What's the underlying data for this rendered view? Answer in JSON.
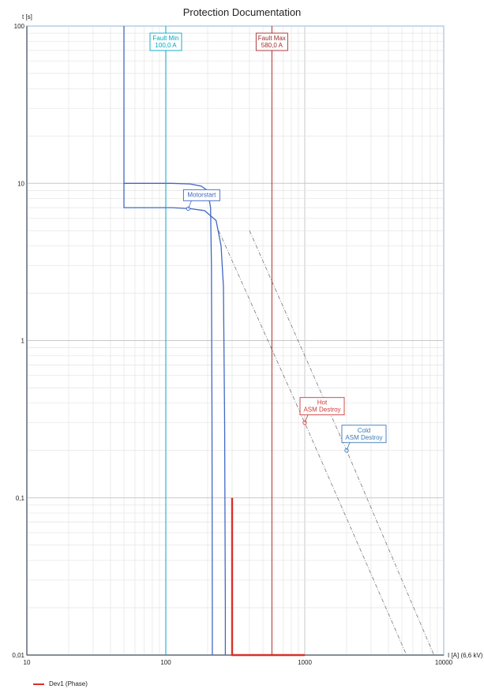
{
  "chart_data": {
    "type": "line",
    "title": "Protection Documentation",
    "xlabel": "I [A] (6,6 kV)",
    "ylabel": "t [s]",
    "x_scale": "log",
    "y_scale": "log",
    "xlim": [
      10,
      10000
    ],
    "ylim": [
      0.01,
      100
    ],
    "grid": true,
    "x_ticks": [
      10,
      100,
      1000,
      10000
    ],
    "x_tick_labels": [
      "10",
      "100",
      "1000",
      "10000"
    ],
    "y_ticks": [
      0.01,
      0.1,
      1,
      10,
      100
    ],
    "y_tick_labels": [
      "0,01",
      "0,1",
      "1",
      "10",
      "100"
    ],
    "legend_position": "bottom-left",
    "colors": {
      "fault_min": "#00a7c4",
      "fault_max": "#a42a2a",
      "motor": "#4168c5",
      "device": "#d9302b",
      "hot": "#cc3a3a",
      "cold": "#3a78b5",
      "destroy_line": "#777777",
      "frame": "#c9d9ea"
    },
    "series": [
      {
        "name": "Dev1 (Phase)",
        "color": "#d9302b",
        "points": [
          [
            300,
            0.1
          ],
          [
            300,
            0.01
          ],
          [
            1000,
            0.01
          ]
        ]
      }
    ],
    "curves": [
      {
        "key": "motor_cold",
        "color": "#4168c5",
        "points": [
          [
            50,
            100
          ],
          [
            50,
            10
          ],
          [
            110,
            10
          ],
          [
            150,
            9.9
          ],
          [
            180,
            9.6
          ],
          [
            200,
            9.0
          ],
          [
            210,
            7.0
          ],
          [
            213,
            3.0
          ],
          [
            215,
            0.3
          ],
          [
            216,
            0.02
          ],
          [
            216,
            0.01
          ]
        ]
      },
      {
        "key": "motor_hot",
        "color": "#4168c5",
        "points": [
          [
            50,
            10
          ],
          [
            50,
            7
          ],
          [
            110,
            7
          ],
          [
            150,
            6.9
          ],
          [
            190,
            6.7
          ],
          [
            230,
            5.8
          ],
          [
            250,
            4.0
          ],
          [
            260,
            2.2
          ],
          [
            265,
            0.3
          ],
          [
            268,
            0.02
          ],
          [
            268,
            0.01
          ]
        ]
      },
      {
        "key": "hot_destroy",
        "color": "#777777",
        "points": [
          [
            240,
            5
          ],
          [
            1000,
            0.3
          ],
          [
            5400,
            0.01
          ]
        ]
      },
      {
        "key": "cold_destroy",
        "color": "#777777",
        "points": [
          [
            400,
            5
          ],
          [
            2000,
            0.2
          ],
          [
            8500,
            0.01
          ]
        ]
      }
    ],
    "fault_lines": [
      {
        "key": "fault_min",
        "x": 100,
        "label_line1": "Fault Min",
        "label_line2": "100,0 A",
        "color": "#00a7c4"
      },
      {
        "key": "fault_max",
        "x": 580,
        "label_line1": "Fault Max",
        "label_line2": "580,0 A",
        "color": "#a42a2a"
      }
    ],
    "annotations": [
      {
        "key": "motorstart",
        "line1": "Motorstart",
        "line2": "",
        "x": 145,
        "y": 6.9,
        "color": "#4168c5"
      },
      {
        "key": "hot",
        "line1": "Hot",
        "line2": "ASM Destroy",
        "x": 1000,
        "y": 0.3,
        "color": "#cc3a3a"
      },
      {
        "key": "cold",
        "line1": "Cold",
        "line2": "ASM Destroy",
        "x": 2000,
        "y": 0.2,
        "color": "#3a78b5"
      }
    ]
  }
}
